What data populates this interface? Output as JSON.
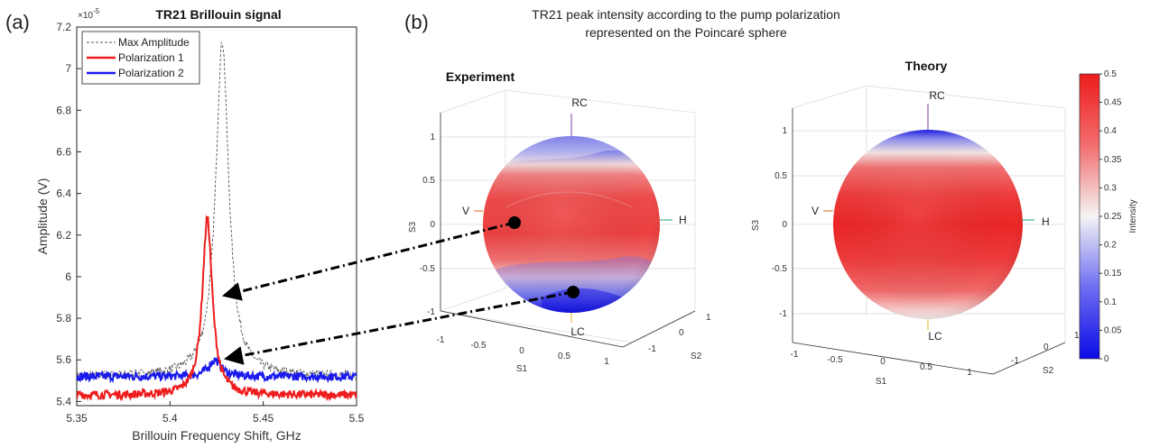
{
  "figure": {
    "panel_a_label": "(a)",
    "panel_b_label": "(b)",
    "panel_b_title_line1": "TR21 peak intensity according to the pump polarization",
    "panel_b_title_line2": "represented on the Poincaré sphere"
  },
  "colors": {
    "polarization1": "#ee1c1c",
    "polarization2": "#1a1aee",
    "max_amplitude": "#555555",
    "intensity_high": "#ee2020",
    "intensity_mid": "#f2f2f2",
    "intensity_low": "#1010dd"
  },
  "chart_data": [
    {
      "type": "line",
      "title": "TR21 Brillouin signal",
      "xlabel": "Brillouin Frequency Shift, GHz",
      "ylabel": "Amplitude (V)",
      "y_exponent": "×10",
      "y_exponent_power": "-5",
      "xlim": [
        5.35,
        5.5
      ],
      "ylim": [
        5.38,
        7.2
      ],
      "x_ticks": [
        5.35,
        5.4,
        5.45,
        5.5
      ],
      "x_tick_labels": [
        "5.35",
        "5.4",
        "5.45",
        "5.5"
      ],
      "y_ticks": [
        5.4,
        5.6,
        5.8,
        6,
        6.2,
        6.4,
        6.6,
        6.8,
        7,
        7.2
      ],
      "y_tick_labels": [
        "5.4",
        "5.6",
        "5.8",
        "6",
        "6.2",
        "6.4",
        "6.6",
        "6.8",
        "7",
        "7.2"
      ],
      "legend_position": "top-left",
      "series": [
        {
          "name": "Max Amplitude",
          "style": "dashed",
          "baseline": 5.52,
          "peak_x": 5.428,
          "peak_y": 7.13,
          "width": 0.0042,
          "noise": 0.022
        },
        {
          "name": "Polarization 1",
          "style": "solid",
          "baseline": 5.43,
          "peak_x": 5.42,
          "peak_y": 6.28,
          "width": 0.0032,
          "noise": 0.02
        },
        {
          "name": "Polarization 2",
          "style": "solid",
          "baseline": 5.52,
          "peak_x": 5.424,
          "peak_y": 5.6,
          "width": 0.004,
          "noise": 0.02
        }
      ]
    },
    {
      "type": "heatmap",
      "title": "Experiment",
      "zlabel": "S3",
      "xlabel": "S1",
      "ylabel": "S2",
      "z_tick_labels": [
        "1",
        "0.5",
        "0",
        "-0.5",
        "-1"
      ],
      "s1_tick_labels": [
        "-1",
        "-0.5",
        "0",
        "0.5",
        "1"
      ],
      "s2_tick_labels": [
        "1",
        "0",
        "-1"
      ],
      "pole_labels": {
        "top": "RC",
        "bottom": "LC",
        "left": "V",
        "right": "H"
      },
      "description_values": {
        "equator_intensity": 0.45,
        "rc_intensity": 0.05,
        "lc_intensity": 0.0
      },
      "markers": [
        {
          "name": "marker-polarization-1",
          "s1": -0.55,
          "s3": 0.0
        },
        {
          "name": "marker-polarization-2",
          "s1": 0.1,
          "s3": -0.7
        }
      ]
    },
    {
      "type": "heatmap",
      "title": "Theory",
      "zlabel": "S3",
      "xlabel": "S1",
      "ylabel": "S2",
      "z_tick_labels": [
        "1",
        "0.5",
        "0",
        "-0.5",
        "-1"
      ],
      "s1_tick_labels": [
        "-1",
        "-0.5",
        "0",
        "0.5",
        "1"
      ],
      "s2_tick_labels": [
        "1",
        "0",
        "-1"
      ],
      "pole_labels": {
        "top": "RC",
        "bottom": "LC",
        "left": "V",
        "right": "H"
      },
      "description_values": {
        "equator_intensity": 0.5,
        "rc_intensity": 0.0,
        "lc_intensity": 0.45
      }
    },
    {
      "type": "colorbar",
      "label": "Intensity",
      "range": [
        0,
        0.5
      ],
      "tick_labels": [
        "0.5",
        "0.45",
        "0.4",
        "0.35",
        "0.3",
        "0.25",
        "0.2",
        "0.15",
        "0.1",
        "0.05",
        "0"
      ]
    }
  ]
}
